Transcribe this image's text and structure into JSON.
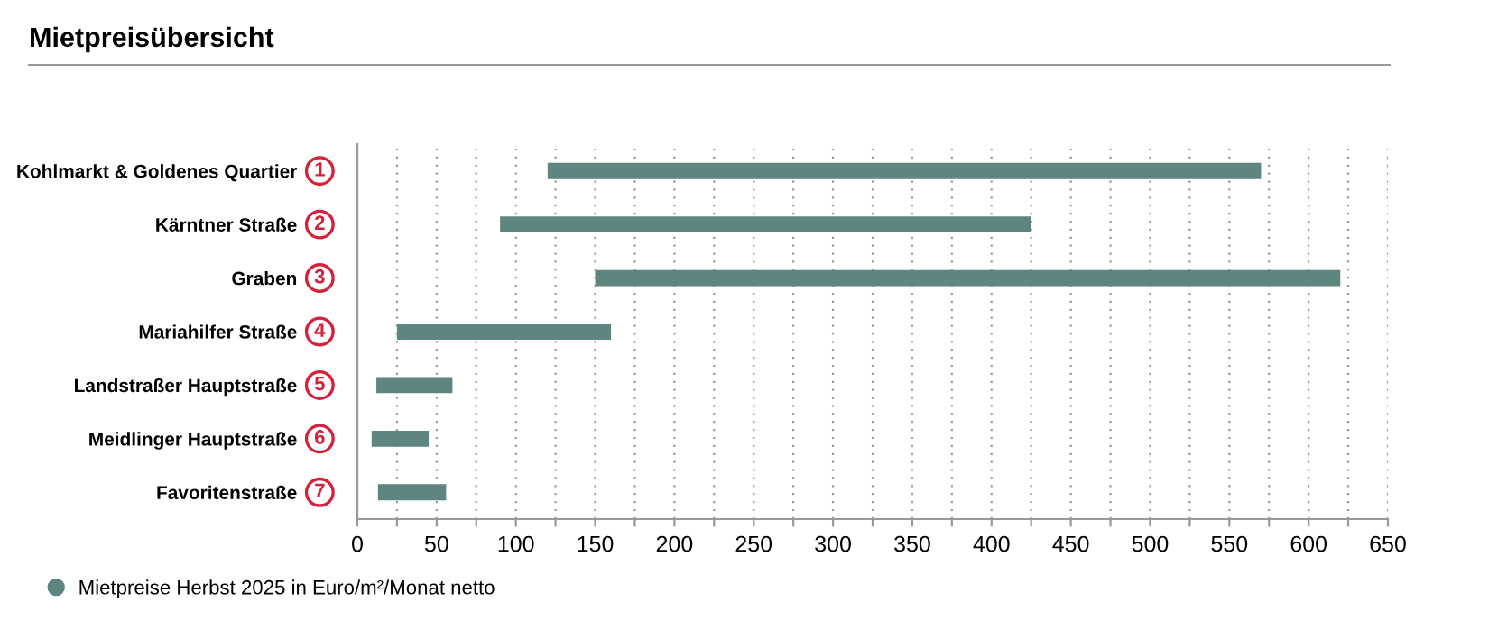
{
  "chart_data": {
    "type": "bar",
    "orientation": "horizontal",
    "title": "Mietpreisübersicht",
    "categories": [
      "Kohlmarkt & Goldenes Quartier",
      "Kärntner Straße",
      "Graben",
      "Mariahilfer Straße",
      "Landstraßer Hauptstraße",
      "Meidlinger Hauptstraße",
      "Favoritenstraße"
    ],
    "series": [
      {
        "name": "Mietpreise Herbst 2025 in Euro/m²/Monat netto",
        "color": "#5e8580",
        "base": [
          120,
          90,
          150,
          25,
          12,
          9,
          13
        ],
        "values": [
          450,
          335,
          470,
          135,
          48,
          36,
          43
        ]
      }
    ],
    "annotations": [
      "1",
      "2",
      "3",
      "4",
      "5",
      "6",
      "7"
    ],
    "xlim": [
      0,
      650
    ],
    "xticks": [
      0,
      {
        "value": 25,
        "label": null
      },
      50,
      {
        "value": 75,
        "label": null
      },
      100,
      {
        "value": 125,
        "label": null
      },
      150,
      {
        "value": 175,
        "label": null
      },
      200,
      {
        "value": 225,
        "label": null
      },
      250,
      {
        "value": 275,
        "label": null
      },
      300,
      {
        "value": 325,
        "label": null
      },
      350,
      {
        "value": 375,
        "label": null
      },
      400,
      {
        "value": 425,
        "label": null
      },
      450,
      {
        "value": 475,
        "label": null
      },
      500,
      {
        "value": 525,
        "label": null
      },
      550,
      {
        "value": 575,
        "label": null
      },
      600,
      {
        "value": 625,
        "label": null
      },
      650
    ],
    "grid": "x",
    "legend": "bottom left"
  }
}
